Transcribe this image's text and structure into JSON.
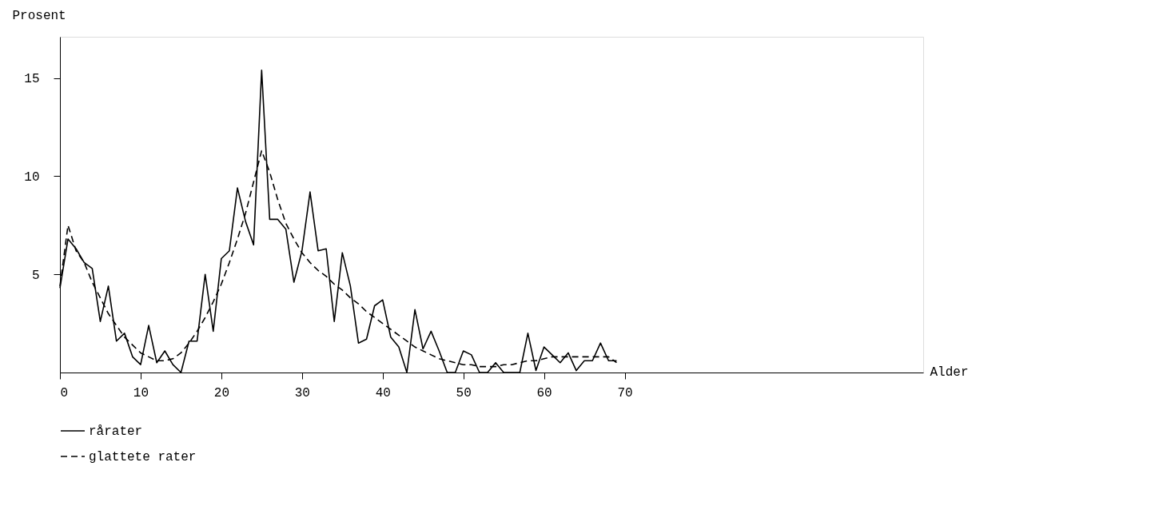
{
  "chart_data": {
    "type": "line",
    "xlabel": "Alder",
    "ylabel": "Prosent",
    "x": [
      0,
      1,
      2,
      3,
      4,
      5,
      6,
      7,
      8,
      9,
      10,
      11,
      12,
      13,
      14,
      15,
      16,
      17,
      18,
      19,
      20,
      21,
      22,
      23,
      24,
      25,
      26,
      27,
      28,
      29,
      30,
      31,
      32,
      33,
      34,
      35,
      36,
      37,
      38,
      39,
      40,
      41,
      42,
      43,
      44,
      45,
      46,
      47,
      48,
      49,
      50,
      51,
      52,
      53,
      54,
      55,
      56,
      57,
      58,
      59,
      60,
      61,
      62,
      63,
      64,
      65,
      66,
      67,
      68,
      69
    ],
    "series": [
      {
        "name": "rårater",
        "color": "#000000",
        "line_style": "solid",
        "values": [
          4.3,
          6.8,
          6.3,
          5.6,
          5.3,
          2.6,
          4.4,
          1.6,
          2.0,
          0.8,
          0.4,
          2.4,
          0.5,
          1.1,
          0.4,
          0.0,
          1.6,
          1.6,
          5.0,
          2.1,
          5.8,
          6.2,
          9.4,
          7.7,
          6.5,
          15.4,
          7.8,
          7.8,
          7.3,
          4.6,
          6.2,
          9.2,
          6.2,
          6.3,
          2.6,
          6.1,
          4.4,
          1.5,
          1.7,
          3.4,
          3.7,
          1.8,
          1.3,
          0.0,
          3.2,
          1.2,
          2.1,
          1.1,
          0.0,
          0.0,
          1.1,
          0.9,
          0.0,
          0.0,
          0.5,
          0.0,
          0.0,
          0.0,
          2.0,
          0.1,
          1.3,
          0.9,
          0.5,
          1.0,
          0.1,
          0.6,
          0.6,
          1.5,
          0.6,
          0.6
        ]
      },
      {
        "name": "glattete rater",
        "color": "#000000",
        "line_style": "dashed",
        "values": [
          4.4,
          7.5,
          6.2,
          5.6,
          4.6,
          3.8,
          3.0,
          2.4,
          1.8,
          1.4,
          1.0,
          0.8,
          0.6,
          0.6,
          0.7,
          1.0,
          1.5,
          2.1,
          2.8,
          3.6,
          4.5,
          5.6,
          6.8,
          8.1,
          9.7,
          11.3,
          10.2,
          8.8,
          7.6,
          6.8,
          6.1,
          5.6,
          5.2,
          4.9,
          4.5,
          4.2,
          3.8,
          3.5,
          3.1,
          2.8,
          2.5,
          2.2,
          1.9,
          1.6,
          1.3,
          1.1,
          0.9,
          0.7,
          0.6,
          0.5,
          0.4,
          0.4,
          0.3,
          0.3,
          0.3,
          0.4,
          0.4,
          0.5,
          0.6,
          0.6,
          0.7,
          0.8,
          0.8,
          0.8,
          0.8,
          0.8,
          0.8,
          0.8,
          0.8,
          0.5
        ]
      }
    ],
    "xlim": [
      0,
      107
    ],
    "xticks": [
      0,
      10,
      20,
      30,
      40,
      50,
      60,
      70
    ],
    "ylim": [
      0,
      17.1
    ],
    "yticks": [
      5,
      10,
      15
    ],
    "grid": false,
    "legend": "bottom",
    "marker": "none"
  }
}
